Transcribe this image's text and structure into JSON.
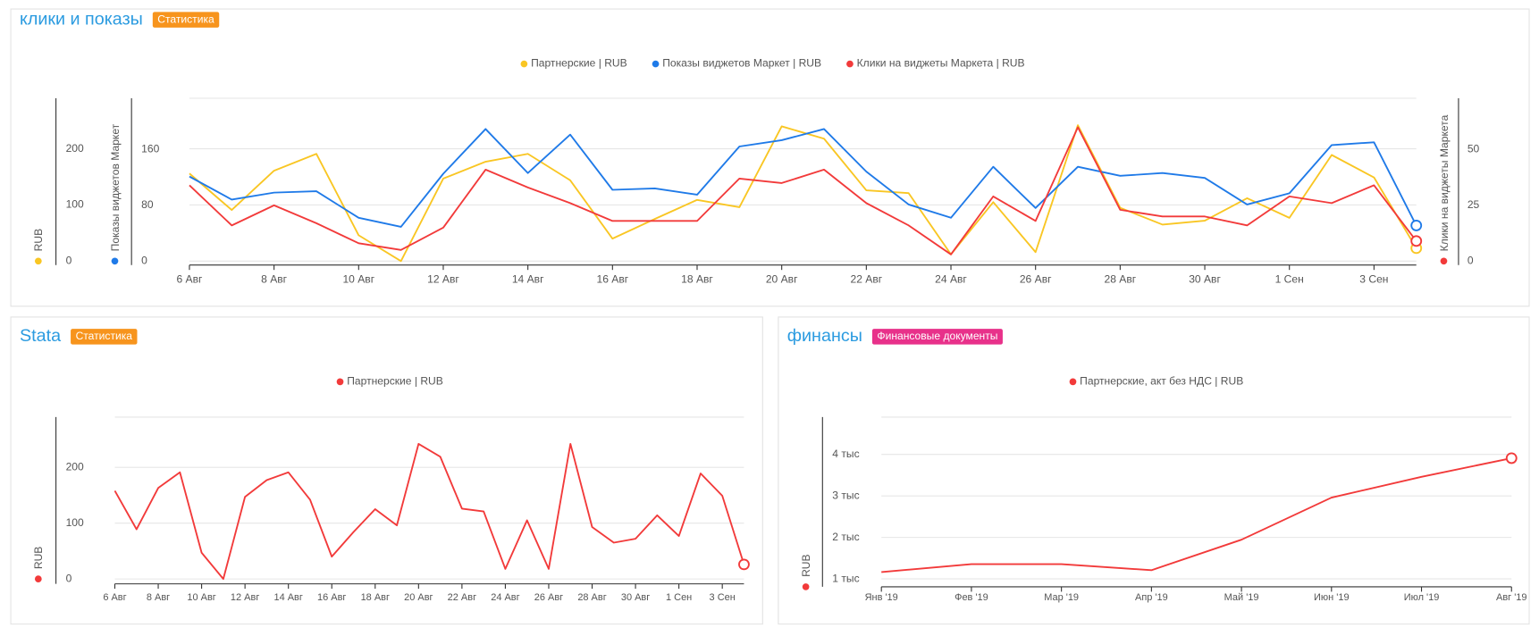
{
  "chart_data": [
    {
      "type": "line",
      "title": "клики и показы",
      "badge": "Статистика",
      "categories": [
        "6 Авг",
        null,
        "8 Авг",
        null,
        "10 Авг",
        null,
        "12 Авг",
        null,
        "14 Авг",
        null,
        "16 Авг",
        null,
        "18 Авг",
        null,
        "20 Авг",
        null,
        "22 Авг",
        null,
        "24 Авг",
        null,
        "26 Авг",
        null,
        "28 Авг",
        null,
        "30 Авг",
        null,
        "1 Сен",
        null,
        "3 Сен",
        null
      ],
      "series": [
        {
          "name": "Партнерские | RUB",
          "color": "#f9c623",
          "axis": "y",
          "values": [
            156,
            91,
            161,
            191,
            46,
            0,
            147,
            177,
            191,
            144,
            40,
            75,
            109,
            96,
            240,
            218,
            126,
            121,
            12,
            105,
            16,
            242,
            95,
            65,
            72,
            112,
            77,
            189,
            149,
            23
          ]
        },
        {
          "name": "Показы виджетов Маркет | RUB",
          "color": "#1f7ae8",
          "axis": "y2",
          "values": [
            121,
            88,
            98,
            100,
            62,
            49,
            125,
            189,
            126,
            181,
            102,
            104,
            95,
            164,
            173,
            189,
            128,
            81,
            62,
            135,
            76,
            135,
            122,
            126,
            119,
            81,
            97,
            166,
            170,
            51
          ]
        },
        {
          "name": "Клики на виджеты Маркета | RUB",
          "color": "#f23a3a",
          "axis": "y3",
          "values": [
            34,
            16,
            25,
            17,
            8,
            5,
            15,
            41,
            33,
            26,
            18,
            18,
            18,
            37,
            35,
            41,
            26,
            16,
            3,
            29,
            18,
            60,
            23,
            20,
            20,
            16,
            29,
            26,
            34,
            9
          ]
        }
      ],
      "ylabel": "RUB",
      "ylim": [
        0,
        290
      ],
      "yticks": [
        0,
        100,
        200
      ],
      "y2label": "Показы виджетов Маркет",
      "y2lim": [
        0,
        233
      ],
      "y2ticks": [
        0,
        80,
        160
      ],
      "y3label": "Клики на виджеты Маркета",
      "y3lim": [
        0,
        73
      ],
      "y3ticks": [
        0,
        25,
        50
      ],
      "grid": true
    },
    {
      "type": "line",
      "title": "Stata",
      "badge": "Статистика",
      "categories": [
        "6 Авг",
        null,
        "8 Авг",
        null,
        "10 Авг",
        null,
        "12 Авг",
        null,
        "14 Авг",
        null,
        "16 Авг",
        null,
        "18 Авг",
        null,
        "20 Авг",
        null,
        "22 Авг",
        null,
        "24 Авг",
        null,
        "26 Авг",
        null,
        "28 Авг",
        null,
        "30 Авг",
        null,
        "1 Сен",
        null,
        "3 Сен",
        null
      ],
      "series": [
        {
          "name": "Партнерские | RUB",
          "color": "#f23a3a",
          "axis": "y",
          "values": [
            158,
            89,
            163,
            191,
            47,
            0,
            147,
            177,
            191,
            142,
            40,
            84,
            125,
            96,
            242,
            219,
            126,
            121,
            18,
            105,
            18,
            242,
            93,
            65,
            72,
            114,
            77,
            189,
            149,
            26
          ]
        }
      ],
      "ylabel": "RUB",
      "ylim": [
        0,
        290
      ],
      "yticks": [
        0,
        100,
        200
      ],
      "grid": true
    },
    {
      "type": "line",
      "title": "финансы",
      "badge": "Финансовые документы",
      "categories": [
        "Янв '19",
        "Фев '19",
        "Мар '19",
        "Апр '19",
        "Май '19",
        "Июн '19",
        "Июл '19",
        "Авг '19"
      ],
      "series": [
        {
          "name": "Партнерские, акт без НДС | RUB",
          "color": "#f23a3a",
          "axis": "y",
          "values": [
            1165,
            1355,
            1355,
            1210,
            1945,
            2960,
            3460,
            3910
          ]
        }
      ],
      "ylabel": "RUB",
      "ylim": [
        810,
        4900
      ],
      "yticks": [
        {
          "value": 1000,
          "label": "1 тыс"
        },
        {
          "value": 2000,
          "label": "2 тыс"
        },
        {
          "value": 3000,
          "label": "3 тыс"
        },
        {
          "value": 4000,
          "label": "4 тыс"
        }
      ],
      "grid": true
    }
  ]
}
